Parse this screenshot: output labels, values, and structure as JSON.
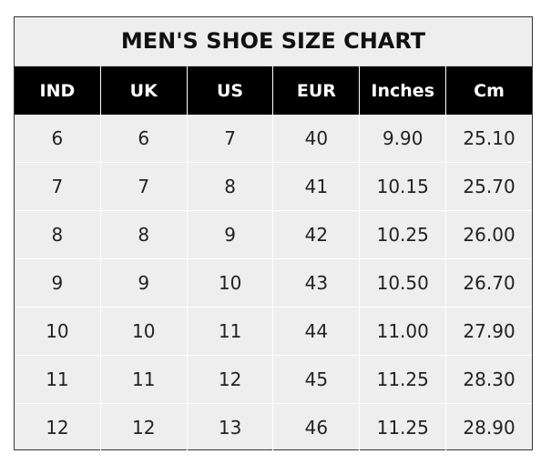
{
  "title": "MEN'S SHOE SIZE CHART",
  "headers": [
    "IND",
    "UK",
    "US",
    "EUR",
    "Inches",
    "Cm"
  ],
  "rows": [
    [
      "6",
      "6",
      "7",
      "40",
      "9.90",
      "25.10"
    ],
    [
      "7",
      "7",
      "8",
      "41",
      "10.15",
      "25.70"
    ],
    [
      "8",
      "8",
      "9",
      "42",
      "10.25",
      "26.00"
    ],
    [
      "9",
      "9",
      "10",
      "43",
      "10.50",
      "26.70"
    ],
    [
      "10",
      "10",
      "11",
      "44",
      "11.00",
      "27.90"
    ],
    [
      "11",
      "11",
      "12",
      "45",
      "11.25",
      "28.30"
    ],
    [
      "12",
      "12",
      "13",
      "46",
      "11.25",
      "28.90"
    ]
  ],
  "colors": {
    "header_bg": "#000000",
    "header_text": "#ffffff",
    "cell_bg": "#eeeeee",
    "grid": "#ffffff"
  }
}
